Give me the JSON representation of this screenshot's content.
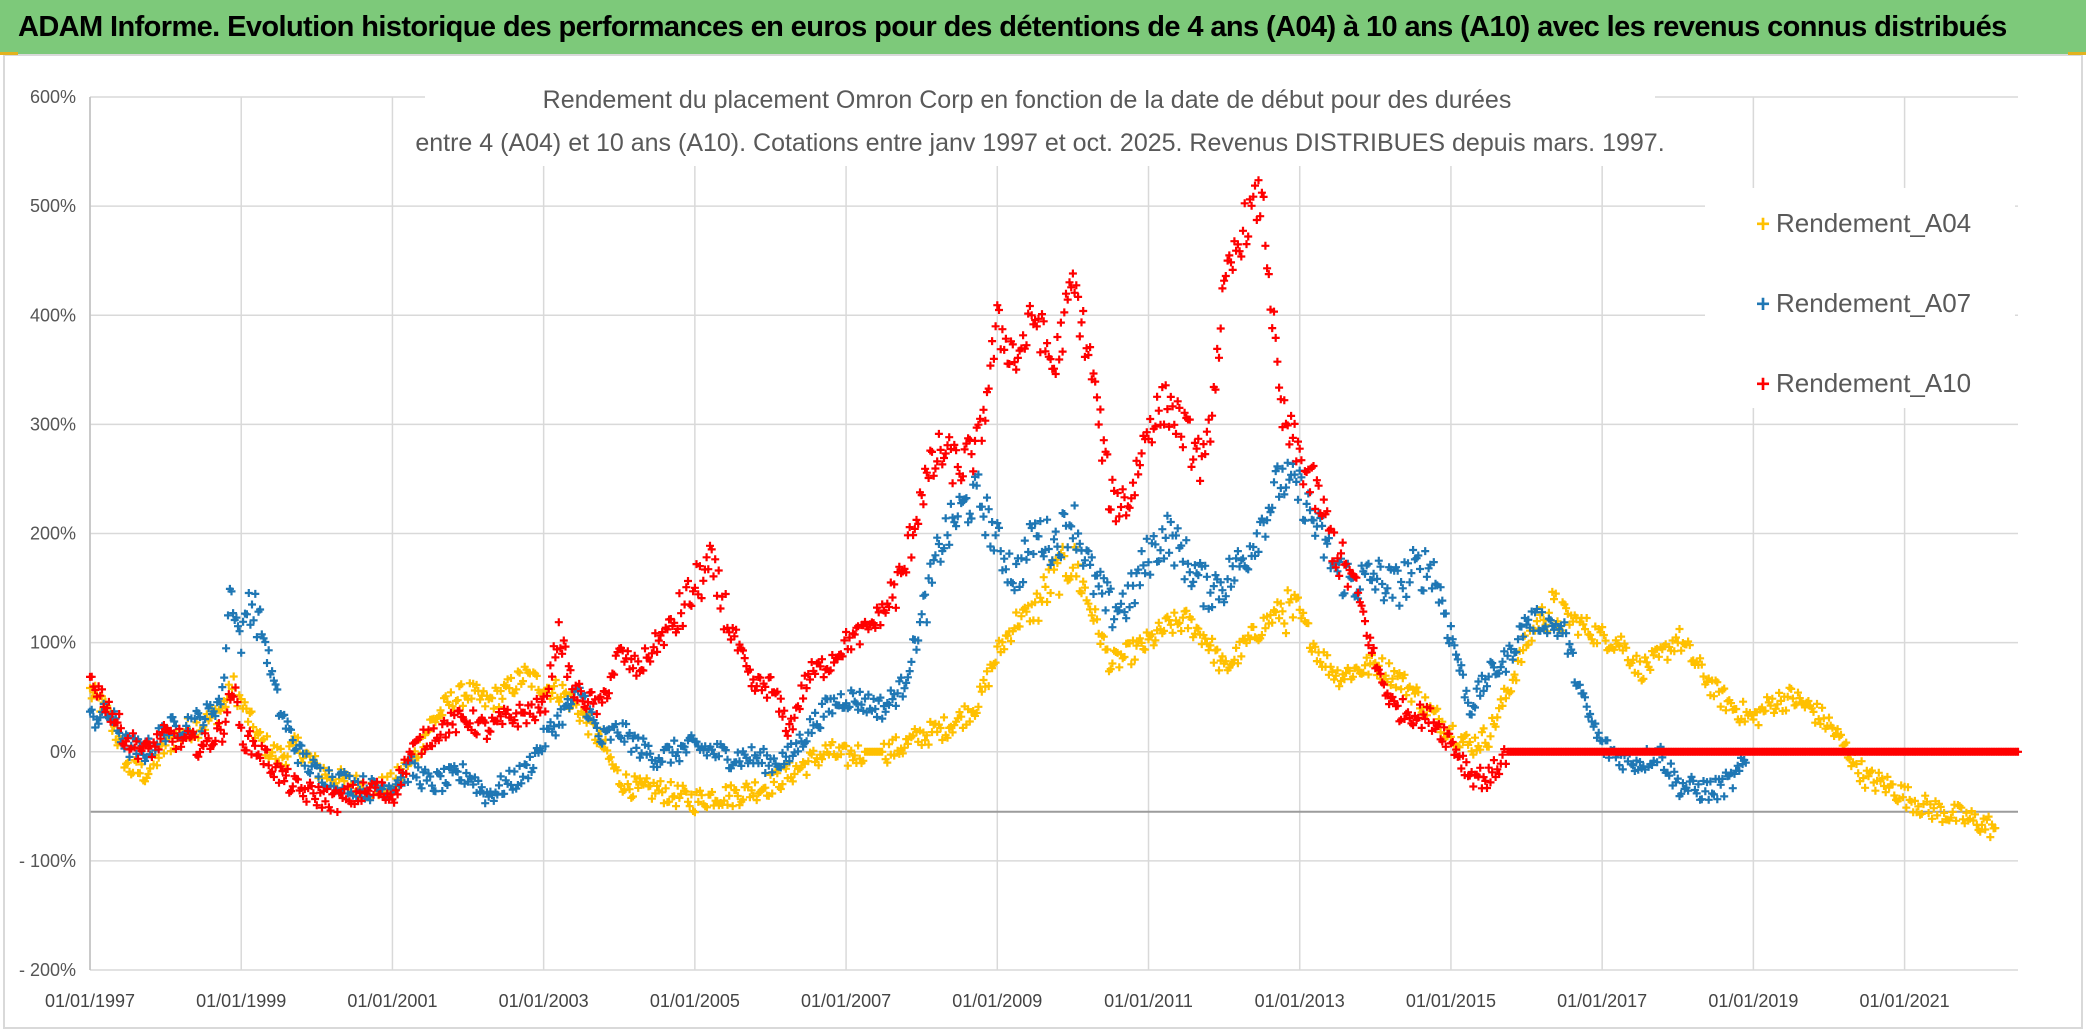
{
  "banner": {
    "text": "ADAM Informe. Evolution historique des performances en euros pour des détentions de 4 ans (A04) à 10 ans (A10) avec les revenus connus distribués",
    "background": "#7dc97a"
  },
  "chart_data": {
    "type": "scatter",
    "title_line1": "Rendement du placement Omron Corp en fonction de la date de début pour des durées",
    "title_line2": "entre 4 (A04) et 10 ans (A10). Cotations entre janv 1997 et oct. 2025. Revenus DISTRIBUES depuis mars. 1997.",
    "xlabel": "",
    "ylabel": "",
    "xlim": [
      1997.0,
      2022.5
    ],
    "ylim": [
      -200,
      600
    ],
    "y_ticks": [
      {
        "value": 600,
        "label": "600%"
      },
      {
        "value": 500,
        "label": "500%"
      },
      {
        "value": 400,
        "label": "400%"
      },
      {
        "value": 300,
        "label": "300%"
      },
      {
        "value": 200,
        "label": "200%"
      },
      {
        "value": 100,
        "label": "100%"
      },
      {
        "value": 0,
        "label": "0%"
      },
      {
        "value": -100,
        "label": "- 100%"
      },
      {
        "value": -200,
        "label": "- 200%"
      }
    ],
    "x_ticks": [
      {
        "value": 1997,
        "label": "01/01/1997"
      },
      {
        "value": 1999,
        "label": "01/01/1999"
      },
      {
        "value": 2001,
        "label": "01/01/2001"
      },
      {
        "value": 2003,
        "label": "01/01/2003"
      },
      {
        "value": 2005,
        "label": "01/01/2005"
      },
      {
        "value": 2007,
        "label": "01/01/2007"
      },
      {
        "value": 2009,
        "label": "01/01/2009"
      },
      {
        "value": 2011,
        "label": "01/01/2011"
      },
      {
        "value": 2013,
        "label": "01/01/2013"
      },
      {
        "value": 2015,
        "label": "01/01/2015"
      },
      {
        "value": 2017,
        "label": "01/01/2017"
      },
      {
        "value": 2019,
        "label": "01/01/2019"
      },
      {
        "value": 2021,
        "label": "01/01/2021"
      }
    ],
    "reference_line": -55,
    "grid": true,
    "legend_position": "top-right",
    "series": [
      {
        "name": "Rendement_A04",
        "color": "#ffc000",
        "points": [
          [
            1997.0,
            55
          ],
          [
            1997.25,
            35
          ],
          [
            1997.5,
            -15
          ],
          [
            1997.75,
            -20
          ],
          [
            1998.0,
            5
          ],
          [
            1998.25,
            20
          ],
          [
            1998.5,
            25
          ],
          [
            1998.75,
            40
          ],
          [
            1998.9,
            60
          ],
          [
            1999.0,
            45
          ],
          [
            1999.25,
            10
          ],
          [
            1999.5,
            -5
          ],
          [
            1999.75,
            5
          ],
          [
            2000.0,
            -15
          ],
          [
            2000.25,
            -25
          ],
          [
            2000.5,
            -30
          ],
          [
            2000.75,
            -35
          ],
          [
            2001.0,
            -30
          ],
          [
            2001.25,
            -10
          ],
          [
            2001.5,
            25
          ],
          [
            2001.75,
            45
          ],
          [
            2002.0,
            55
          ],
          [
            2002.25,
            45
          ],
          [
            2002.5,
            55
          ],
          [
            2002.75,
            70
          ],
          [
            2003.0,
            60
          ],
          [
            2003.25,
            55
          ],
          [
            2003.5,
            35
          ],
          [
            2003.75,
            10
          ],
          [
            2004.0,
            -25
          ],
          [
            2004.25,
            -35
          ],
          [
            2004.5,
            -35
          ],
          [
            2004.75,
            -40
          ],
          [
            2005.0,
            -45
          ],
          [
            2005.25,
            -40
          ],
          [
            2005.5,
            -40
          ],
          [
            2005.75,
            -35
          ],
          [
            2006.0,
            -30
          ],
          [
            2006.25,
            -20
          ],
          [
            2006.5,
            -10
          ],
          [
            2006.75,
            0
          ],
          [
            2007.0,
            -5
          ],
          [
            2007.25,
            0
          ],
          [
            2007.5,
            0
          ],
          [
            2007.75,
            5
          ],
          [
            2008.0,
            15
          ],
          [
            2008.25,
            20
          ],
          [
            2008.5,
            30
          ],
          [
            2008.75,
            45
          ],
          [
            2009.0,
            90
          ],
          [
            2009.25,
            120
          ],
          [
            2009.5,
            130
          ],
          [
            2009.75,
            160
          ],
          [
            2010.0,
            175
          ],
          [
            2010.25,
            130
          ],
          [
            2010.5,
            80
          ],
          [
            2010.75,
            90
          ],
          [
            2011.0,
            100
          ],
          [
            2011.25,
            115
          ],
          [
            2011.5,
            120
          ],
          [
            2011.75,
            105
          ],
          [
            2012.0,
            75
          ],
          [
            2012.25,
            95
          ],
          [
            2012.5,
            115
          ],
          [
            2012.75,
            130
          ],
          [
            2013.0,
            125
          ],
          [
            2013.25,
            90
          ],
          [
            2013.5,
            70
          ],
          [
            2013.75,
            75
          ],
          [
            2014.0,
            80
          ],
          [
            2014.25,
            70
          ],
          [
            2014.5,
            55
          ],
          [
            2014.75,
            35
          ],
          [
            2015.0,
            20
          ],
          [
            2015.25,
            5
          ],
          [
            2015.5,
            15
          ],
          [
            2015.75,
            55
          ],
          [
            2016.0,
            100
          ],
          [
            2016.25,
            130
          ],
          [
            2016.5,
            125
          ],
          [
            2016.75,
            115
          ],
          [
            2017.0,
            105
          ],
          [
            2017.25,
            100
          ],
          [
            2017.5,
            75
          ],
          [
            2017.75,
            85
          ],
          [
            2018.0,
            105
          ],
          [
            2018.25,
            80
          ],
          [
            2018.5,
            55
          ],
          [
            2018.75,
            40
          ],
          [
            2019.0,
            30
          ],
          [
            2019.25,
            45
          ],
          [
            2019.5,
            50
          ],
          [
            2019.75,
            40
          ],
          [
            2020.0,
            25
          ],
          [
            2020.25,
            0
          ],
          [
            2020.5,
            -25
          ],
          [
            2020.75,
            -30
          ],
          [
            2021.0,
            -40
          ],
          [
            2021.25,
            -50
          ],
          [
            2021.5,
            -55
          ],
          [
            2021.75,
            -60
          ],
          [
            2022.0,
            -65
          ],
          [
            2022.2,
            -70
          ]
        ]
      },
      {
        "name": "Rendement_A07",
        "color": "#1f77b4",
        "points": [
          [
            1997.0,
            30
          ],
          [
            1997.25,
            35
          ],
          [
            1997.5,
            5
          ],
          [
            1997.75,
            0
          ],
          [
            1998.0,
            20
          ],
          [
            1998.25,
            25
          ],
          [
            1998.5,
            30
          ],
          [
            1998.75,
            50
          ],
          [
            1998.85,
            150
          ],
          [
            1999.0,
            100
          ],
          [
            1999.1,
            140
          ],
          [
            1999.25,
            120
          ],
          [
            1999.5,
            40
          ],
          [
            1999.75,
            0
          ],
          [
            2000.0,
            -20
          ],
          [
            2000.25,
            -25
          ],
          [
            2000.5,
            -30
          ],
          [
            2000.75,
            -35
          ],
          [
            2001.0,
            -30
          ],
          [
            2001.25,
            -15
          ],
          [
            2001.5,
            -30
          ],
          [
            2001.75,
            -25
          ],
          [
            2002.0,
            -20
          ],
          [
            2002.25,
            -40
          ],
          [
            2002.5,
            -30
          ],
          [
            2002.75,
            -20
          ],
          [
            2003.0,
            10
          ],
          [
            2003.25,
            35
          ],
          [
            2003.5,
            55
          ],
          [
            2003.75,
            10
          ],
          [
            2004.0,
            20
          ],
          [
            2004.25,
            5
          ],
          [
            2004.5,
            -5
          ],
          [
            2004.75,
            0
          ],
          [
            2005.0,
            5
          ],
          [
            2005.25,
            0
          ],
          [
            2005.5,
            -5
          ],
          [
            2005.75,
            -5
          ],
          [
            2006.0,
            -10
          ],
          [
            2006.25,
            -5
          ],
          [
            2006.5,
            20
          ],
          [
            2006.75,
            40
          ],
          [
            2007.0,
            50
          ],
          [
            2007.25,
            45
          ],
          [
            2007.5,
            40
          ],
          [
            2007.75,
            60
          ],
          [
            2008.0,
            120
          ],
          [
            2008.25,
            190
          ],
          [
            2008.5,
            220
          ],
          [
            2008.75,
            235
          ],
          [
            2009.0,
            190
          ],
          [
            2009.25,
            160
          ],
          [
            2009.5,
            200
          ],
          [
            2009.75,
            190
          ],
          [
            2010.0,
            215
          ],
          [
            2010.25,
            160
          ],
          [
            2010.5,
            130
          ],
          [
            2010.75,
            140
          ],
          [
            2011.0,
            180
          ],
          [
            2011.25,
            200
          ],
          [
            2011.5,
            175
          ],
          [
            2011.75,
            150
          ],
          [
            2012.0,
            155
          ],
          [
            2012.25,
            175
          ],
          [
            2012.5,
            210
          ],
          [
            2012.75,
            250
          ],
          [
            2013.0,
            240
          ],
          [
            2013.25,
            200
          ],
          [
            2013.5,
            165
          ],
          [
            2013.75,
            155
          ],
          [
            2014.0,
            160
          ],
          [
            2014.25,
            150
          ],
          [
            2014.5,
            165
          ],
          [
            2014.75,
            170
          ],
          [
            2015.0,
            110
          ],
          [
            2015.25,
            40
          ],
          [
            2015.5,
            70
          ],
          [
            2015.75,
            85
          ],
          [
            2016.0,
            120
          ],
          [
            2016.25,
            120
          ],
          [
            2016.5,
            110
          ],
          [
            2016.75,
            45
          ],
          [
            2017.0,
            5
          ],
          [
            2017.25,
            -5
          ],
          [
            2017.5,
            -10
          ],
          [
            2017.75,
            0
          ],
          [
            2018.0,
            -30
          ],
          [
            2018.25,
            -35
          ],
          [
            2018.5,
            -35
          ],
          [
            2018.75,
            -25
          ],
          [
            2018.9,
            -10
          ]
        ]
      },
      {
        "name": "Rendement_A10",
        "color": "#ff0000",
        "points": [
          [
            1997.0,
            70
          ],
          [
            1997.25,
            40
          ],
          [
            1997.5,
            10
          ],
          [
            1997.75,
            0
          ],
          [
            1998.0,
            15
          ],
          [
            1998.25,
            10
          ],
          [
            1998.5,
            5
          ],
          [
            1998.75,
            20
          ],
          [
            1998.9,
            60
          ],
          [
            1999.0,
            15
          ],
          [
            1999.25,
            0
          ],
          [
            1999.5,
            -20
          ],
          [
            1999.75,
            -35
          ],
          [
            2000.0,
            -40
          ],
          [
            2000.25,
            -45
          ],
          [
            2000.5,
            -40
          ],
          [
            2000.75,
            -35
          ],
          [
            2001.0,
            -40
          ],
          [
            2001.25,
            0
          ],
          [
            2001.5,
            15
          ],
          [
            2001.75,
            25
          ],
          [
            2002.0,
            30
          ],
          [
            2002.25,
            20
          ],
          [
            2002.5,
            30
          ],
          [
            2002.75,
            35
          ],
          [
            2003.0,
            40
          ],
          [
            2003.2,
            110
          ],
          [
            2003.4,
            55
          ],
          [
            2003.75,
            40
          ],
          [
            2004.0,
            90
          ],
          [
            2004.25,
            75
          ],
          [
            2004.5,
            100
          ],
          [
            2004.75,
            120
          ],
          [
            2005.0,
            150
          ],
          [
            2005.2,
            170
          ],
          [
            2005.5,
            110
          ],
          [
            2005.75,
            60
          ],
          [
            2006.0,
            60
          ],
          [
            2006.25,
            20
          ],
          [
            2006.5,
            70
          ],
          [
            2006.75,
            80
          ],
          [
            2007.0,
            100
          ],
          [
            2007.25,
            110
          ],
          [
            2007.5,
            130
          ],
          [
            2007.75,
            160
          ],
          [
            2008.0,
            240
          ],
          [
            2008.25,
            275
          ],
          [
            2008.5,
            260
          ],
          [
            2008.75,
            280
          ],
          [
            2009.0,
            390
          ],
          [
            2009.25,
            360
          ],
          [
            2009.5,
            400
          ],
          [
            2009.75,
            350
          ],
          [
            2010.0,
            430
          ],
          [
            2010.25,
            350
          ],
          [
            2010.5,
            230
          ],
          [
            2010.75,
            230
          ],
          [
            2011.0,
            300
          ],
          [
            2011.25,
            320
          ],
          [
            2011.5,
            290
          ],
          [
            2011.75,
            260
          ],
          [
            2012.0,
            420
          ],
          [
            2012.25,
            480
          ],
          [
            2012.5,
            510
          ],
          [
            2012.75,
            310
          ],
          [
            2013.0,
            270
          ],
          [
            2013.25,
            230
          ],
          [
            2013.5,
            180
          ],
          [
            2013.75,
            150
          ],
          [
            2014.0,
            80
          ],
          [
            2014.25,
            40
          ],
          [
            2014.5,
            35
          ],
          [
            2014.75,
            30
          ],
          [
            2015.0,
            10
          ],
          [
            2015.25,
            -20
          ],
          [
            2015.5,
            -25
          ],
          [
            2015.75,
            0
          ],
          [
            2016.0,
            0
          ],
          [
            2016.5,
            0
          ],
          [
            2017.0,
            0
          ],
          [
            2017.5,
            0
          ],
          [
            2018.0,
            0
          ],
          [
            2018.5,
            0
          ],
          [
            2019.0,
            0
          ],
          [
            2019.5,
            0
          ],
          [
            2020.0,
            0
          ],
          [
            2020.5,
            0
          ],
          [
            2021.0,
            0
          ],
          [
            2021.5,
            0
          ],
          [
            2022.0,
            0
          ],
          [
            2022.5,
            0
          ]
        ]
      }
    ]
  }
}
